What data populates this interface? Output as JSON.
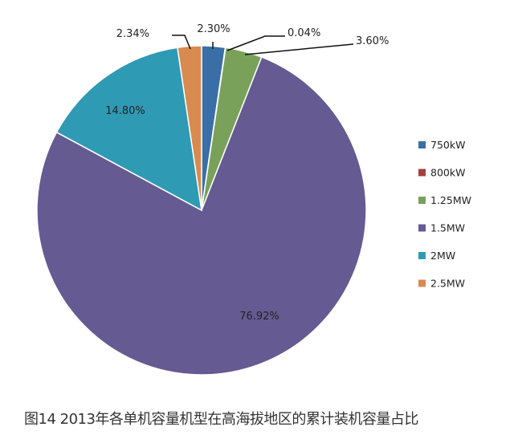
{
  "chart_data": {
    "type": "pie",
    "title": "图14 2013年各单机容量机型在高海拔地区的累计装机容量占比",
    "start": "top",
    "direction": "clockwise",
    "legend_position": "right",
    "slices": [
      {
        "name": "750kW",
        "value": 2.3,
        "label": "2.30%",
        "color": "#3a6ea6"
      },
      {
        "name": "800kW",
        "value": 0.04,
        "label": "0.04%",
        "color": "#a3403d"
      },
      {
        "name": "1.25MW",
        "value": 3.6,
        "label": "3.60%",
        "color": "#7aa15a"
      },
      {
        "name": "1.5MW",
        "value": 76.92,
        "label": "76.92%",
        "color": "#655a91"
      },
      {
        "name": "2MW",
        "value": 14.8,
        "label": "14.80%",
        "color": "#2f9ab4"
      },
      {
        "name": "2.5MW",
        "value": 2.34,
        "label": "2.34%",
        "color": "#d88a50"
      }
    ]
  }
}
